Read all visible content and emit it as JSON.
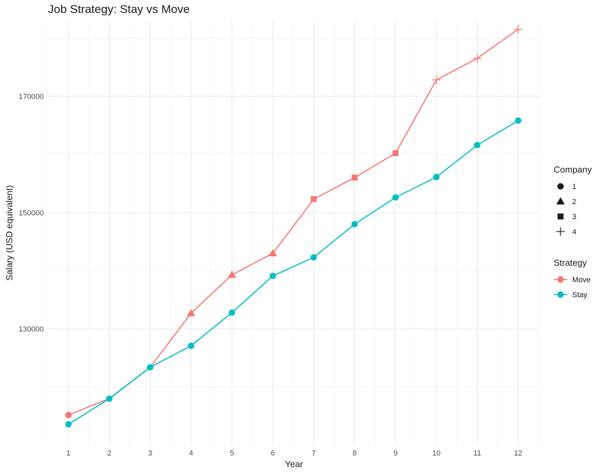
{
  "chart_data": {
    "type": "line",
    "title": "Job Strategy: Stay vs Move",
    "xlabel": "Year",
    "ylabel": "Salary (USD equivalent)",
    "x": [
      1,
      2,
      3,
      4,
      5,
      6,
      7,
      8,
      9,
      10,
      11,
      12
    ],
    "xlim": [
      0.5,
      12.5
    ],
    "ylim": [
      110000,
      183000
    ],
    "y_ticks": [
      130000,
      150000,
      170000
    ],
    "y_tick_labels": [
      "130000",
      "150000",
      "170000"
    ],
    "x_tick_labels": [
      "1",
      "2",
      "3",
      "4",
      "5",
      "6",
      "7",
      "8",
      "9",
      "10",
      "11",
      "12"
    ],
    "grid": true,
    "legend_position": "right",
    "series": [
      {
        "name": "Move",
        "color": "#F8766D",
        "values": [
          115200,
          118000,
          123400,
          132700,
          139300,
          143000,
          152300,
          156000,
          160200,
          172800,
          176500,
          181500
        ],
        "company": [
          "1",
          "1",
          "1",
          "2",
          "2",
          "2",
          "3",
          "3",
          "3",
          "4",
          "4",
          "4"
        ]
      },
      {
        "name": "Stay",
        "color": "#00BFC4",
        "values": [
          113600,
          118000,
          123400,
          127100,
          132800,
          139100,
          142300,
          148000,
          152600,
          156100,
          161600,
          165800
        ],
        "company": [
          "1",
          "1",
          "1",
          "1",
          "1",
          "1",
          "1",
          "1",
          "1",
          "1",
          "1",
          "1"
        ]
      }
    ],
    "legends": {
      "company": {
        "title": "Company",
        "items": [
          {
            "label": "1",
            "shape": "circle"
          },
          {
            "label": "2",
            "shape": "triangle"
          },
          {
            "label": "3",
            "shape": "square"
          },
          {
            "label": "4",
            "shape": "plus"
          }
        ]
      },
      "strategy": {
        "title": "Strategy",
        "items": [
          {
            "label": "Move",
            "color": "#F8766D"
          },
          {
            "label": "Stay",
            "color": "#00BFC4"
          }
        ]
      }
    }
  }
}
